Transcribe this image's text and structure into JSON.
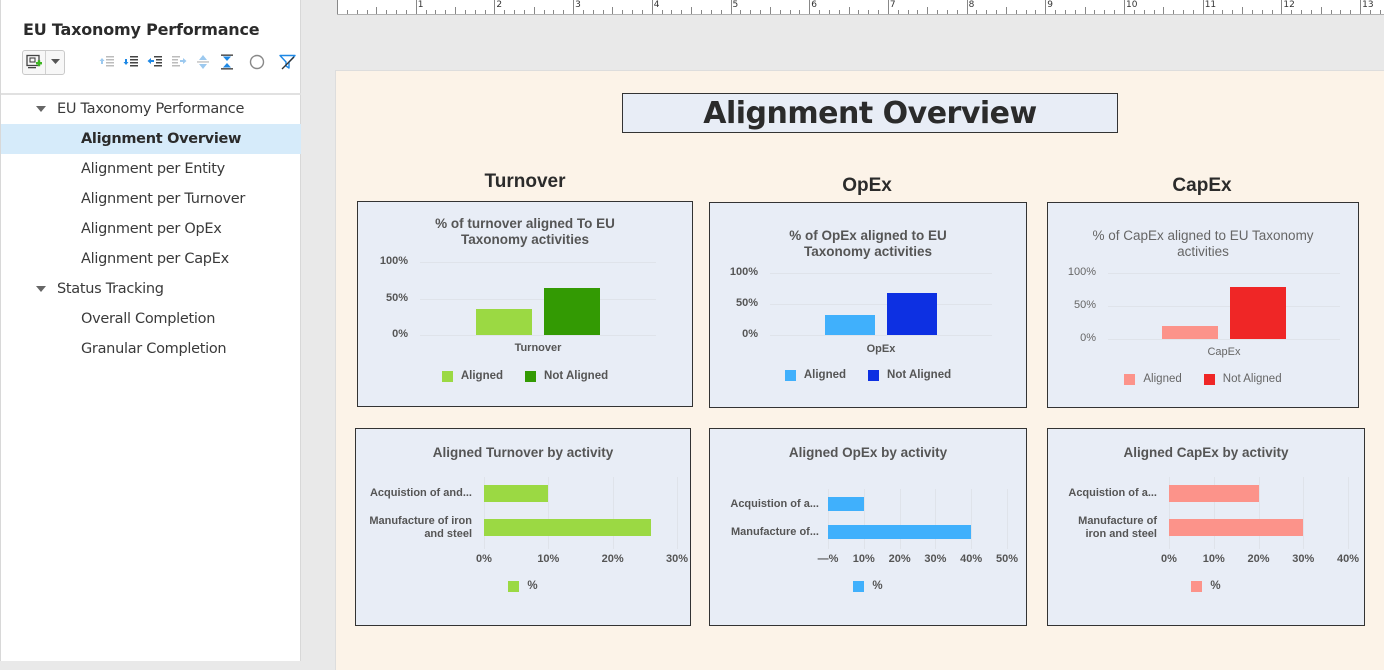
{
  "sidebar": {
    "title": "EU Taxonomy Performance",
    "toolbar": {
      "add_view_icon": "add-view-icon",
      "buttons": [
        "promote-icon",
        "demote-icon",
        "indent-left-icon",
        "indent-right-icon",
        "expand-icon",
        "collapse-icon",
        "circle-icon",
        "filter-clear-icon"
      ]
    },
    "tree": [
      {
        "type": "group",
        "label": "EU Taxonomy Performance"
      },
      {
        "type": "leaf",
        "label": "Alignment Overview",
        "selected": true
      },
      {
        "type": "leaf",
        "label": "Alignment per Entity"
      },
      {
        "type": "leaf",
        "label": "Alignment per Turnover"
      },
      {
        "type": "leaf",
        "label": "Alignment per OpEx"
      },
      {
        "type": "leaf",
        "label": "Alignment per CapEx"
      },
      {
        "type": "group",
        "label": "Status Tracking"
      },
      {
        "type": "leaf",
        "label": "Overall Completion"
      },
      {
        "type": "leaf",
        "label": "Granular Completion"
      }
    ]
  },
  "ruler": {
    "labels": [
      "1",
      "2",
      "3",
      "4",
      "5",
      "6",
      "7",
      "8",
      "9",
      "10",
      "11",
      "12",
      "13"
    ]
  },
  "page": {
    "title": "Alignment Overview",
    "sections": [
      "Turnover",
      "OpEx",
      "CapEx"
    ]
  },
  "colors": {
    "turnover_aligned": "#9bd943",
    "turnover_not_aligned": "#339a03",
    "opex_aligned": "#40b0fc",
    "opex_not_aligned": "#0d30e2",
    "capex_aligned": "#fc938a",
    "capex_not_aligned": "#ef2626",
    "chart_bg": "#e8edf6",
    "page_bg": "#fcf3e8",
    "selected_row": "#d6ebfa"
  },
  "chart_data": [
    {
      "type": "bar",
      "title": "% of turnover aligned To EU Taxonomy activities",
      "title_lines": [
        "% of turnover aligned To EU",
        "Taxonomy activities"
      ],
      "categories": [
        "Turnover"
      ],
      "series": [
        {
          "name": "Aligned",
          "values": [
            35
          ]
        },
        {
          "name": "Not Aligned",
          "values": [
            64
          ]
        }
      ],
      "yticks": [
        "100%",
        "50%",
        "0%"
      ],
      "ylim": [
        0,
        100
      ],
      "legend": [
        "Aligned",
        "Not Aligned"
      ]
    },
    {
      "type": "bar",
      "title": "% of OpEx aligned to EU Taxonomy activities",
      "title_lines": [
        "% of OpEx aligned to EU",
        "Taxonomy activities"
      ],
      "categories": [
        "OpEx"
      ],
      "series": [
        {
          "name": "Aligned",
          "values": [
            32
          ]
        },
        {
          "name": "Not Aligned",
          "values": [
            67
          ]
        }
      ],
      "yticks": [
        "100%",
        "50%",
        "0%"
      ],
      "ylim": [
        0,
        100
      ],
      "legend": [
        "Aligned",
        "Not Aligned"
      ]
    },
    {
      "type": "bar",
      "title": "% of CapEx aligned to EU Taxonomy activities",
      "title_lines": [
        "% of CapEx aligned to EU Taxonomy",
        "activities"
      ],
      "categories": [
        "CapEx"
      ],
      "series": [
        {
          "name": "Aligned",
          "values": [
            20
          ]
        },
        {
          "name": "Not Aligned",
          "values": [
            79
          ]
        }
      ],
      "yticks": [
        "100%",
        "50%",
        "0%"
      ],
      "ylim": [
        0,
        100
      ],
      "legend": [
        "Aligned",
        "Not Aligned"
      ]
    },
    {
      "type": "bar",
      "orientation": "horizontal",
      "title": "Aligned Turnover by activity",
      "categories": [
        "Acquistion of and...",
        "Manufacture of iron and steel"
      ],
      "category_lines": [
        [
          "Acquistion of and..."
        ],
        [
          "Manufacture of iron",
          "and steel"
        ]
      ],
      "series": [
        {
          "name": "%",
          "values": [
            10,
            26
          ]
        }
      ],
      "xticks": [
        "0%",
        "10%",
        "20%",
        "30%"
      ],
      "xlim": [
        0,
        30
      ],
      "legend": [
        "%"
      ]
    },
    {
      "type": "bar",
      "orientation": "horizontal",
      "title": "Aligned OpEx by activity",
      "categories": [
        "Acquistion of a...",
        "Manufacture of..."
      ],
      "category_lines": [
        [
          "Acquistion of a..."
        ],
        [
          "Manufacture of..."
        ]
      ],
      "series": [
        {
          "name": "%",
          "values": [
            10,
            40
          ]
        }
      ],
      "xticks": [
        "—%",
        "10%",
        "20%",
        "30%",
        "40%",
        "50%"
      ],
      "xlim": [
        0,
        50
      ],
      "legend": [
        "%"
      ]
    },
    {
      "type": "bar",
      "orientation": "horizontal",
      "title": "Aligned CapEx by activity",
      "categories": [
        "Acquistion of a...",
        "Manufacture of iron and steel"
      ],
      "category_lines": [
        [
          "Acquistion of a..."
        ],
        [
          "Manufacture of",
          "iron and steel"
        ]
      ],
      "series": [
        {
          "name": "%",
          "values": [
            20,
            30
          ]
        }
      ],
      "xticks": [
        "0%",
        "10%",
        "20%",
        "30%",
        "40%"
      ],
      "xlim": [
        0,
        40
      ],
      "legend": [
        "%"
      ]
    }
  ]
}
